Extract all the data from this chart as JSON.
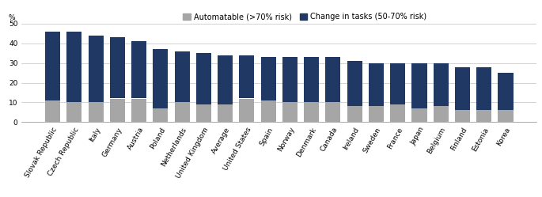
{
  "categories": [
    "Slovak Republic",
    "Czech Republic",
    "Italy",
    "Germany",
    "Austria",
    "Poland",
    "Netherlands",
    "United Kingdom",
    "Average",
    "United States",
    "Spain",
    "Norway",
    "Denmark",
    "Canada",
    "Ireland",
    "Sweden",
    "France",
    "Japan",
    "Belgium",
    "Finland",
    "Estonia",
    "Korea"
  ],
  "automatable": [
    11,
    10,
    10,
    12,
    12,
    7,
    10,
    9,
    9,
    12,
    11,
    10,
    10,
    10,
    8,
    8,
    9,
    7,
    8,
    6,
    6,
    6
  ],
  "change_in_tasks": [
    35,
    36,
    34,
    31,
    29,
    30,
    26,
    26,
    25,
    22,
    22,
    23,
    23,
    23,
    23,
    22,
    21,
    23,
    22,
    22,
    22,
    19
  ],
  "color_automatable": "#a6a6a6",
  "color_change": "#1f3864",
  "ylabel": "%",
  "ylim": [
    0,
    50
  ],
  "yticks": [
    0,
    10,
    20,
    30,
    40,
    50
  ],
  "legend_automatable": "Automatable (>70% risk)",
  "legend_change": "Change in tasks (50-70% risk)",
  "tick_fontsize": 6.5,
  "legend_fontsize": 7
}
